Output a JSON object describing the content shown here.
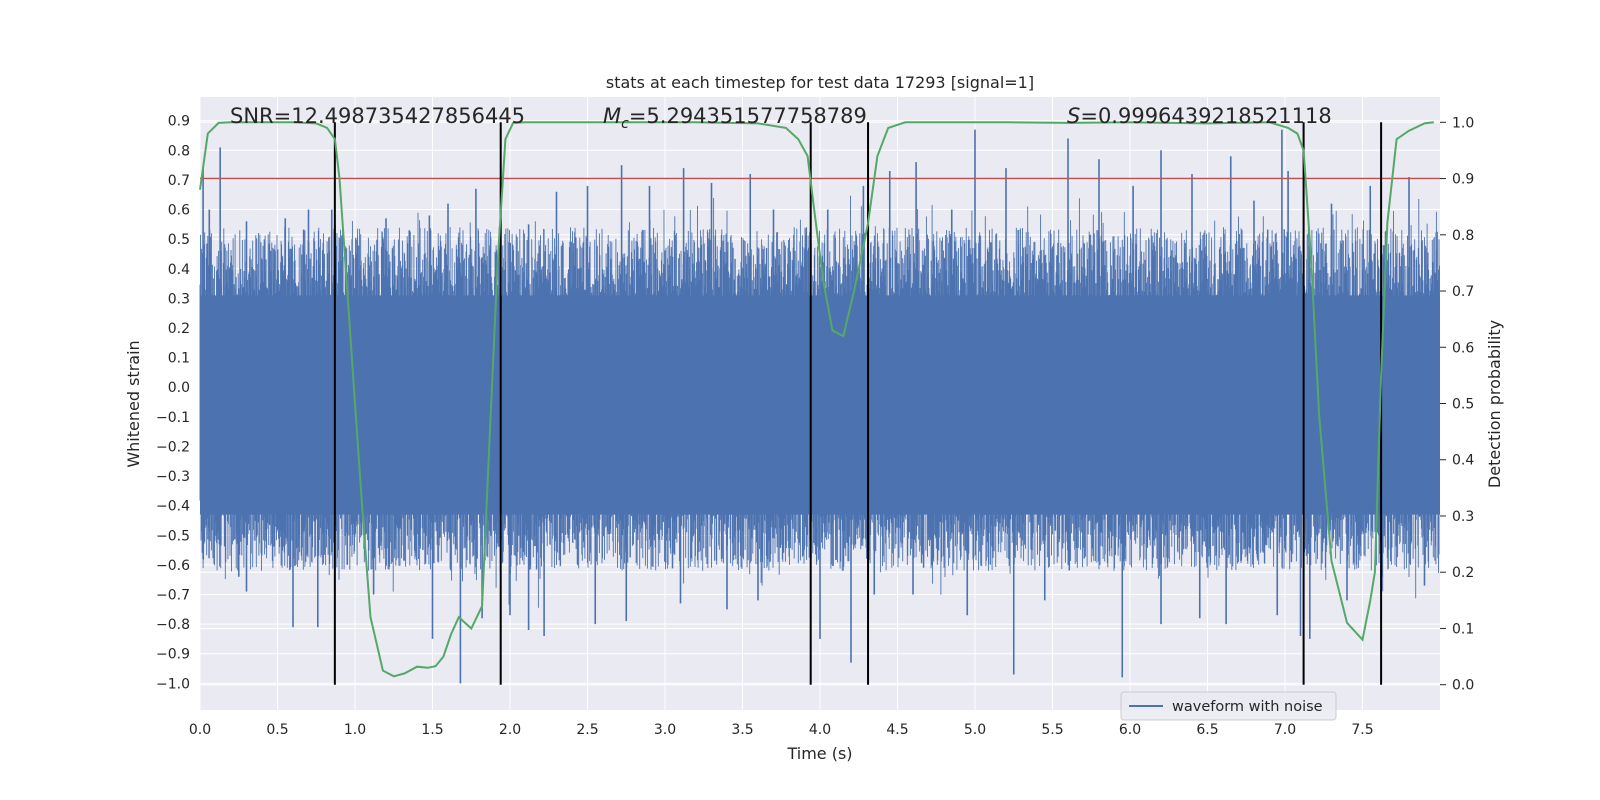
{
  "chart_data": {
    "type": "line",
    "title": "stats at each timestep for test data 17293 [signal=1]",
    "xlabel": "Time (s)",
    "ylabel": "Whitened strain",
    "y2label": "Detection probability",
    "xlim": [
      0.0,
      8.0
    ],
    "ylim": [
      -1.09,
      0.98
    ],
    "y2lim": [
      -0.045,
      1.045
    ],
    "x_ticks": [
      "0.0",
      "0.5",
      "1.0",
      "1.5",
      "2.0",
      "2.5",
      "3.0",
      "3.5",
      "4.0",
      "4.5",
      "5.0",
      "5.5",
      "6.0",
      "6.5",
      "7.0",
      "7.5"
    ],
    "y_ticks": [
      "0.9",
      "0.8",
      "0.7",
      "0.6",
      "0.5",
      "0.4",
      "0.3",
      "0.2",
      "0.1",
      "0.0",
      "-0.1",
      "-0.2",
      "-0.3",
      "-0.4",
      "-0.5",
      "-0.6",
      "-0.7",
      "-0.8",
      "-0.9",
      "-1.0"
    ],
    "y2_ticks": [
      "1.0",
      "0.9",
      "0.8",
      "0.7",
      "0.6",
      "0.5",
      "0.4",
      "0.3",
      "0.2",
      "0.1",
      "0.0"
    ],
    "annotations": {
      "snr": "SNR=12.498735427856445",
      "mc_symbol": "M",
      "mc_sub": "c",
      "mc_value": "=5.294351577758789",
      "s_symbol": "S",
      "s_value": "=0.9996439218521118"
    },
    "legend": {
      "label": "waveform with noise",
      "location": "lower-right"
    },
    "threshold": {
      "value": 0.9,
      "axis": "right",
      "color": "#c44e52"
    },
    "boundaries": [
      0.87,
      1.94,
      3.94,
      4.31,
      7.12,
      7.62
    ],
    "waveform": {
      "name": "waveform with noise",
      "color": "#4c72b0",
      "dense_band": [
        -0.43,
        0.31
      ],
      "peaks_positive": [
        [
          0.02,
          0.74
        ],
        [
          0.06,
          0.6
        ],
        [
          0.13,
          0.81
        ],
        [
          0.3,
          0.56
        ],
        [
          0.55,
          0.57
        ],
        [
          0.7,
          0.6
        ],
        [
          0.85,
          0.6
        ],
        [
          1.2,
          0.57
        ],
        [
          1.35,
          0.53
        ],
        [
          1.48,
          0.58
        ],
        [
          1.6,
          0.62
        ],
        [
          1.78,
          0.67
        ],
        [
          2.12,
          0.55
        ],
        [
          2.3,
          0.66
        ],
        [
          2.5,
          0.68
        ],
        [
          2.72,
          0.75
        ],
        [
          2.9,
          0.68
        ],
        [
          3.12,
          0.74
        ],
        [
          3.3,
          0.69
        ],
        [
          3.55,
          0.72
        ],
        [
          3.7,
          0.6
        ],
        [
          4.05,
          0.6
        ],
        [
          4.28,
          0.68
        ],
        [
          4.45,
          0.73
        ],
        [
          4.62,
          0.76
        ],
        [
          4.85,
          0.6
        ],
        [
          5.0,
          0.87
        ],
        [
          5.2,
          0.74
        ],
        [
          5.6,
          0.84
        ],
        [
          5.8,
          0.77
        ],
        [
          6.02,
          0.68
        ],
        [
          6.2,
          0.8
        ],
        [
          6.4,
          0.72
        ],
        [
          6.65,
          0.78
        ],
        [
          6.8,
          0.63
        ],
        [
          6.98,
          0.87
        ],
        [
          7.02,
          0.73
        ],
        [
          7.3,
          0.62
        ],
        [
          7.55,
          0.68
        ],
        [
          7.8,
          0.71
        ]
      ],
      "peaks_negative": [
        [
          0.02,
          -0.58
        ],
        [
          0.25,
          -0.64
        ],
        [
          0.3,
          -0.69
        ],
        [
          0.6,
          -0.81
        ],
        [
          0.76,
          -0.81
        ],
        [
          0.95,
          -0.6
        ],
        [
          1.12,
          -0.7
        ],
        [
          1.5,
          -0.85
        ],
        [
          1.68,
          -1.0
        ],
        [
          1.82,
          -0.78
        ],
        [
          2.0,
          -0.77
        ],
        [
          2.12,
          -0.82
        ],
        [
          2.22,
          -0.84
        ],
        [
          2.55,
          -0.8
        ],
        [
          2.75,
          -0.79
        ],
        [
          3.1,
          -0.73
        ],
        [
          3.4,
          -0.75
        ],
        [
          3.6,
          -0.72
        ],
        [
          4.0,
          -0.85
        ],
        [
          4.2,
          -0.93
        ],
        [
          4.35,
          -0.7
        ],
        [
          4.6,
          -0.7
        ],
        [
          4.95,
          -0.77
        ],
        [
          5.25,
          -0.97
        ],
        [
          5.45,
          -0.72
        ],
        [
          5.95,
          -0.98
        ],
        [
          6.2,
          -0.8
        ],
        [
          6.45,
          -0.78
        ],
        [
          6.62,
          -0.8
        ],
        [
          6.95,
          -0.77
        ],
        [
          7.1,
          -0.84
        ],
        [
          7.16,
          -0.85
        ],
        [
          7.4,
          -0.72
        ],
        [
          7.9,
          -0.67
        ]
      ]
    },
    "series": [
      {
        "name": "detection probability",
        "axis": "right",
        "color": "#55a868",
        "x": [
          0.0,
          0.05,
          0.12,
          0.2,
          0.4,
          0.6,
          0.75,
          0.82,
          0.87,
          0.9,
          0.95,
          1.0,
          1.05,
          1.1,
          1.18,
          1.25,
          1.32,
          1.4,
          1.47,
          1.52,
          1.57,
          1.62,
          1.67,
          1.75,
          1.82,
          1.87,
          1.92,
          1.97,
          2.02,
          2.1,
          2.4,
          2.8,
          3.2,
          3.6,
          3.78,
          3.86,
          3.92,
          3.96,
          4.02,
          4.08,
          4.15,
          4.22,
          4.31,
          4.37,
          4.44,
          4.55,
          4.8,
          5.2,
          5.6,
          6.0,
          6.5,
          6.9,
          7.02,
          7.08,
          7.12,
          7.17,
          7.22,
          7.3,
          7.4,
          7.5,
          7.55,
          7.58,
          7.62,
          7.66,
          7.72,
          7.8,
          7.9,
          7.96
        ],
        "y": [
          0.88,
          0.98,
          0.999,
          1.0,
          1.0,
          1.0,
          0.998,
          0.99,
          0.97,
          0.9,
          0.7,
          0.5,
          0.3,
          0.12,
          0.025,
          0.015,
          0.02,
          0.032,
          0.03,
          0.033,
          0.05,
          0.09,
          0.12,
          0.1,
          0.14,
          0.45,
          0.75,
          0.97,
          0.999,
          1.0,
          1.0,
          1.0,
          1.0,
          0.998,
          0.99,
          0.97,
          0.94,
          0.85,
          0.72,
          0.63,
          0.62,
          0.7,
          0.82,
          0.94,
          0.99,
          1.0,
          1.0,
          1.0,
          0.999,
          1.0,
          0.998,
          1.0,
          0.99,
          0.98,
          0.95,
          0.75,
          0.48,
          0.22,
          0.11,
          0.08,
          0.15,
          0.2,
          0.55,
          0.82,
          0.97,
          0.985,
          0.998,
          1.0
        ]
      }
    ]
  }
}
